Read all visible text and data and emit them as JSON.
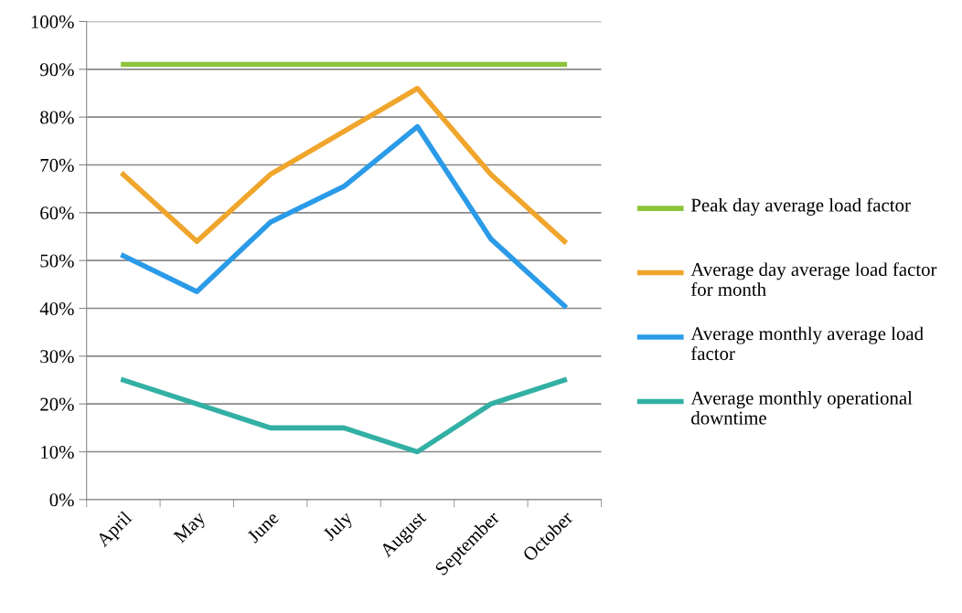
{
  "chart_data": {
    "type": "line",
    "categories": [
      "April",
      "May",
      "June",
      "July",
      "August",
      "September",
      "October"
    ],
    "series": [
      {
        "name": "Peak day average load factor",
        "color": "#8cc43c",
        "values": [
          91,
          91,
          91,
          91,
          91,
          91,
          91
        ]
      },
      {
        "name": "Average day average load factor for month",
        "color": "#f0a52c",
        "values": [
          68,
          54,
          68,
          77,
          86,
          68,
          54
        ]
      },
      {
        "name": "Average monthly average load factor",
        "color": "#2b9be8",
        "values": [
          51,
          43.5,
          58,
          65.5,
          78,
          54.5,
          40.5
        ]
      },
      {
        "name": "Average monthly operational downtime",
        "color": "#33b0a4",
        "values": [
          25,
          20,
          15,
          15,
          10,
          20,
          25
        ]
      }
    ],
    "ylim": [
      0,
      100
    ],
    "yticks": [
      {
        "value": 0,
        "label": "0%"
      },
      {
        "value": 10,
        "label": "10%"
      },
      {
        "value": 20,
        "label": "20%"
      },
      {
        "value": 30,
        "label": "30%"
      },
      {
        "value": 40,
        "label": "40%"
      },
      {
        "value": 50,
        "label": "50%"
      },
      {
        "value": 60,
        "label": "60%"
      },
      {
        "value": 70,
        "label": "70%"
      },
      {
        "value": 80,
        "label": "80%"
      },
      {
        "value": 90,
        "label": "90%"
      },
      {
        "value": 100,
        "label": "100%"
      }
    ],
    "grid": "y",
    "legend": "right",
    "marker": "none",
    "line_style": "solid"
  }
}
